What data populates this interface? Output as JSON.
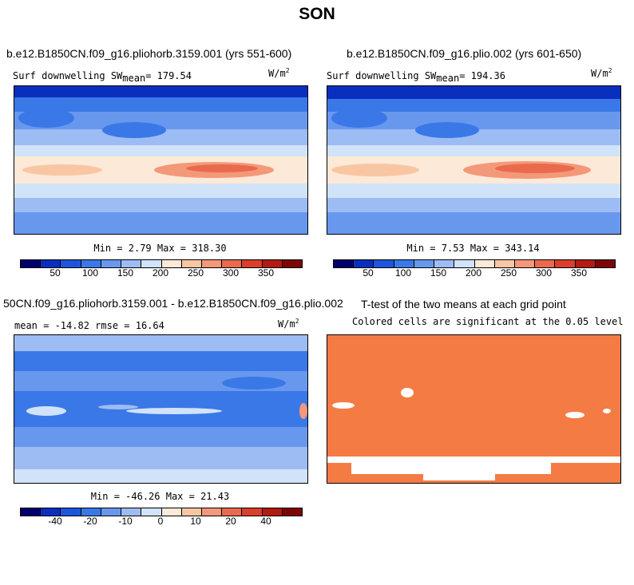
{
  "figure": {
    "title": "SON"
  },
  "panels": [
    {
      "title": "b.e12.B1850CN.f09_g16.pliohorb.3159.001 (yrs 551-600)",
      "variable": "Surf downwelling SW",
      "mean_label": "mean",
      "mean_value": "= 179.54",
      "units": "W/m",
      "units_exp": "2",
      "minmax": "Min =    2.79 Max = 318.30"
    },
    {
      "title": "b.e12.B1850CN.f09_g16.plio.002 (yrs 601-650)",
      "variable": "Surf downwelling SW",
      "mean_label": "mean",
      "mean_value": "= 194.36",
      "units": "W/m",
      "units_exp": "2",
      "minmax": "Min =    7.53 Max = 343.14"
    },
    {
      "title": "50CN.f09_g16.pliohorb.3159.001 - b.e12.B1850CN.f09_g16.plio.002",
      "stats": "mean = -14.82    rmse =  16.64",
      "units": "W/m",
      "units_exp": "2",
      "minmax": "Min = -46.26 Max =  21.43"
    },
    {
      "title": "T-test of the two means at each grid point",
      "subtitle": "Colored cells are significant at the 0.05 level"
    }
  ],
  "colorbars": {
    "absolute": {
      "colors": [
        "#02006b",
        "#0a2fbf",
        "#1e55dc",
        "#3a78e8",
        "#6898ee",
        "#9dbcf3",
        "#d0e3f8",
        "#fde9d7",
        "#f9c6a4",
        "#f4987a",
        "#ea6a4e",
        "#d93f2b",
        "#b31a12",
        "#7e0505"
      ],
      "ticks": [
        "50",
        "100",
        "150",
        "200",
        "250",
        "300",
        "350"
      ]
    },
    "difference": {
      "colors": [
        "#02006b",
        "#0a2fbf",
        "#1e55dc",
        "#3a78e8",
        "#6898ee",
        "#9dbcf3",
        "#d0e3f8",
        "#fde9d7",
        "#f9c6a4",
        "#f4987a",
        "#ea6a4e",
        "#d93f2b",
        "#b31a12",
        "#7e0505"
      ],
      "ticks": [
        "-40",
        "-20",
        "-10",
        "0",
        "10",
        "20",
        "40"
      ]
    }
  },
  "colors": {
    "significant": "#f57b44",
    "insignificant": "#ffffff"
  }
}
